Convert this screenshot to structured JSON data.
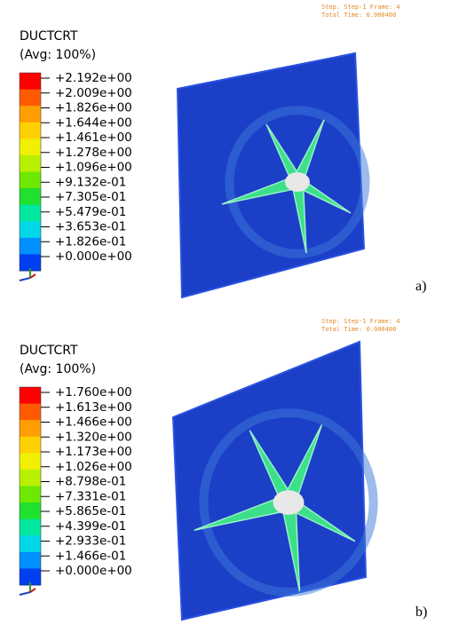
{
  "panels": [
    {
      "legend": {
        "title": "DUCTCRT",
        "subtitle": "(Avg: 100%)",
        "labels": [
          "+2.192e+00",
          "+2.009e+00",
          "+1.826e+00",
          "+1.644e+00",
          "+1.461e+00",
          "+1.278e+00",
          "+1.096e+00",
          "+9.132e-01",
          "+7.305e-01",
          "+5.479e-01",
          "+3.653e-01",
          "+1.826e-01",
          "+0.000e+00"
        ]
      },
      "step": "Step: Step-1    Frame: 4",
      "time": "Total Time: 0.000400",
      "label": "a)"
    },
    {
      "legend": {
        "title": "DUCTCRT",
        "subtitle": "(Avg: 100%)",
        "labels": [
          "+1.760e+00",
          "+1.613e+00",
          "+1.466e+00",
          "+1.320e+00",
          "+1.173e+00",
          "+1.026e+00",
          "+8.798e-01",
          "+7.331e-01",
          "+5.865e-01",
          "+4.399e-01",
          "+2.933e-01",
          "+1.466e-01",
          "+0.000e+00"
        ]
      },
      "step": "Step: Step-1    Frame: 4",
      "time": "Total Time: 0.000400",
      "label": "b)"
    }
  ]
}
